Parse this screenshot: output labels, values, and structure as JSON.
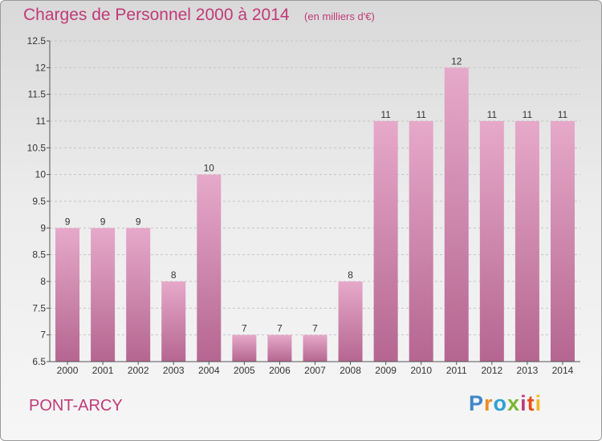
{
  "title": "Charges de Personnel 2000 à 2014",
  "unit_label": "(en milliers d'€)",
  "commune": "PONT-ARCY",
  "logo": {
    "text": "Proxiti",
    "colors": [
      "#3f86c8",
      "#f08a22",
      "#2f9fd8",
      "#7bb531",
      "#c03a78",
      "#e84e1b",
      "#f0b722"
    ]
  },
  "colors": {
    "accent": "#c03a78",
    "bar_top": "#e6a9ca",
    "bar_bottom": "#b56690",
    "grid": "#c4c4c4",
    "axis_text": "#333333"
  },
  "chart_data": {
    "type": "bar",
    "categories": [
      "2000",
      "2001",
      "2002",
      "2003",
      "2004",
      "2005",
      "2006",
      "2007",
      "2008",
      "2009",
      "2010",
      "2011",
      "2012",
      "2013",
      "2014"
    ],
    "values": [
      9,
      9,
      9,
      8,
      10,
      7,
      7,
      7,
      8,
      11,
      11,
      12,
      11,
      11,
      11
    ],
    "yticks": [
      "6.5",
      "7",
      "7.5",
      "8",
      "8.5",
      "9",
      "9.5",
      "10",
      "10.5",
      "11",
      "11.5",
      "12",
      "12.5"
    ],
    "ylim": [
      6.5,
      12.5
    ],
    "grid": "horizontal dashed",
    "legend": "none"
  }
}
